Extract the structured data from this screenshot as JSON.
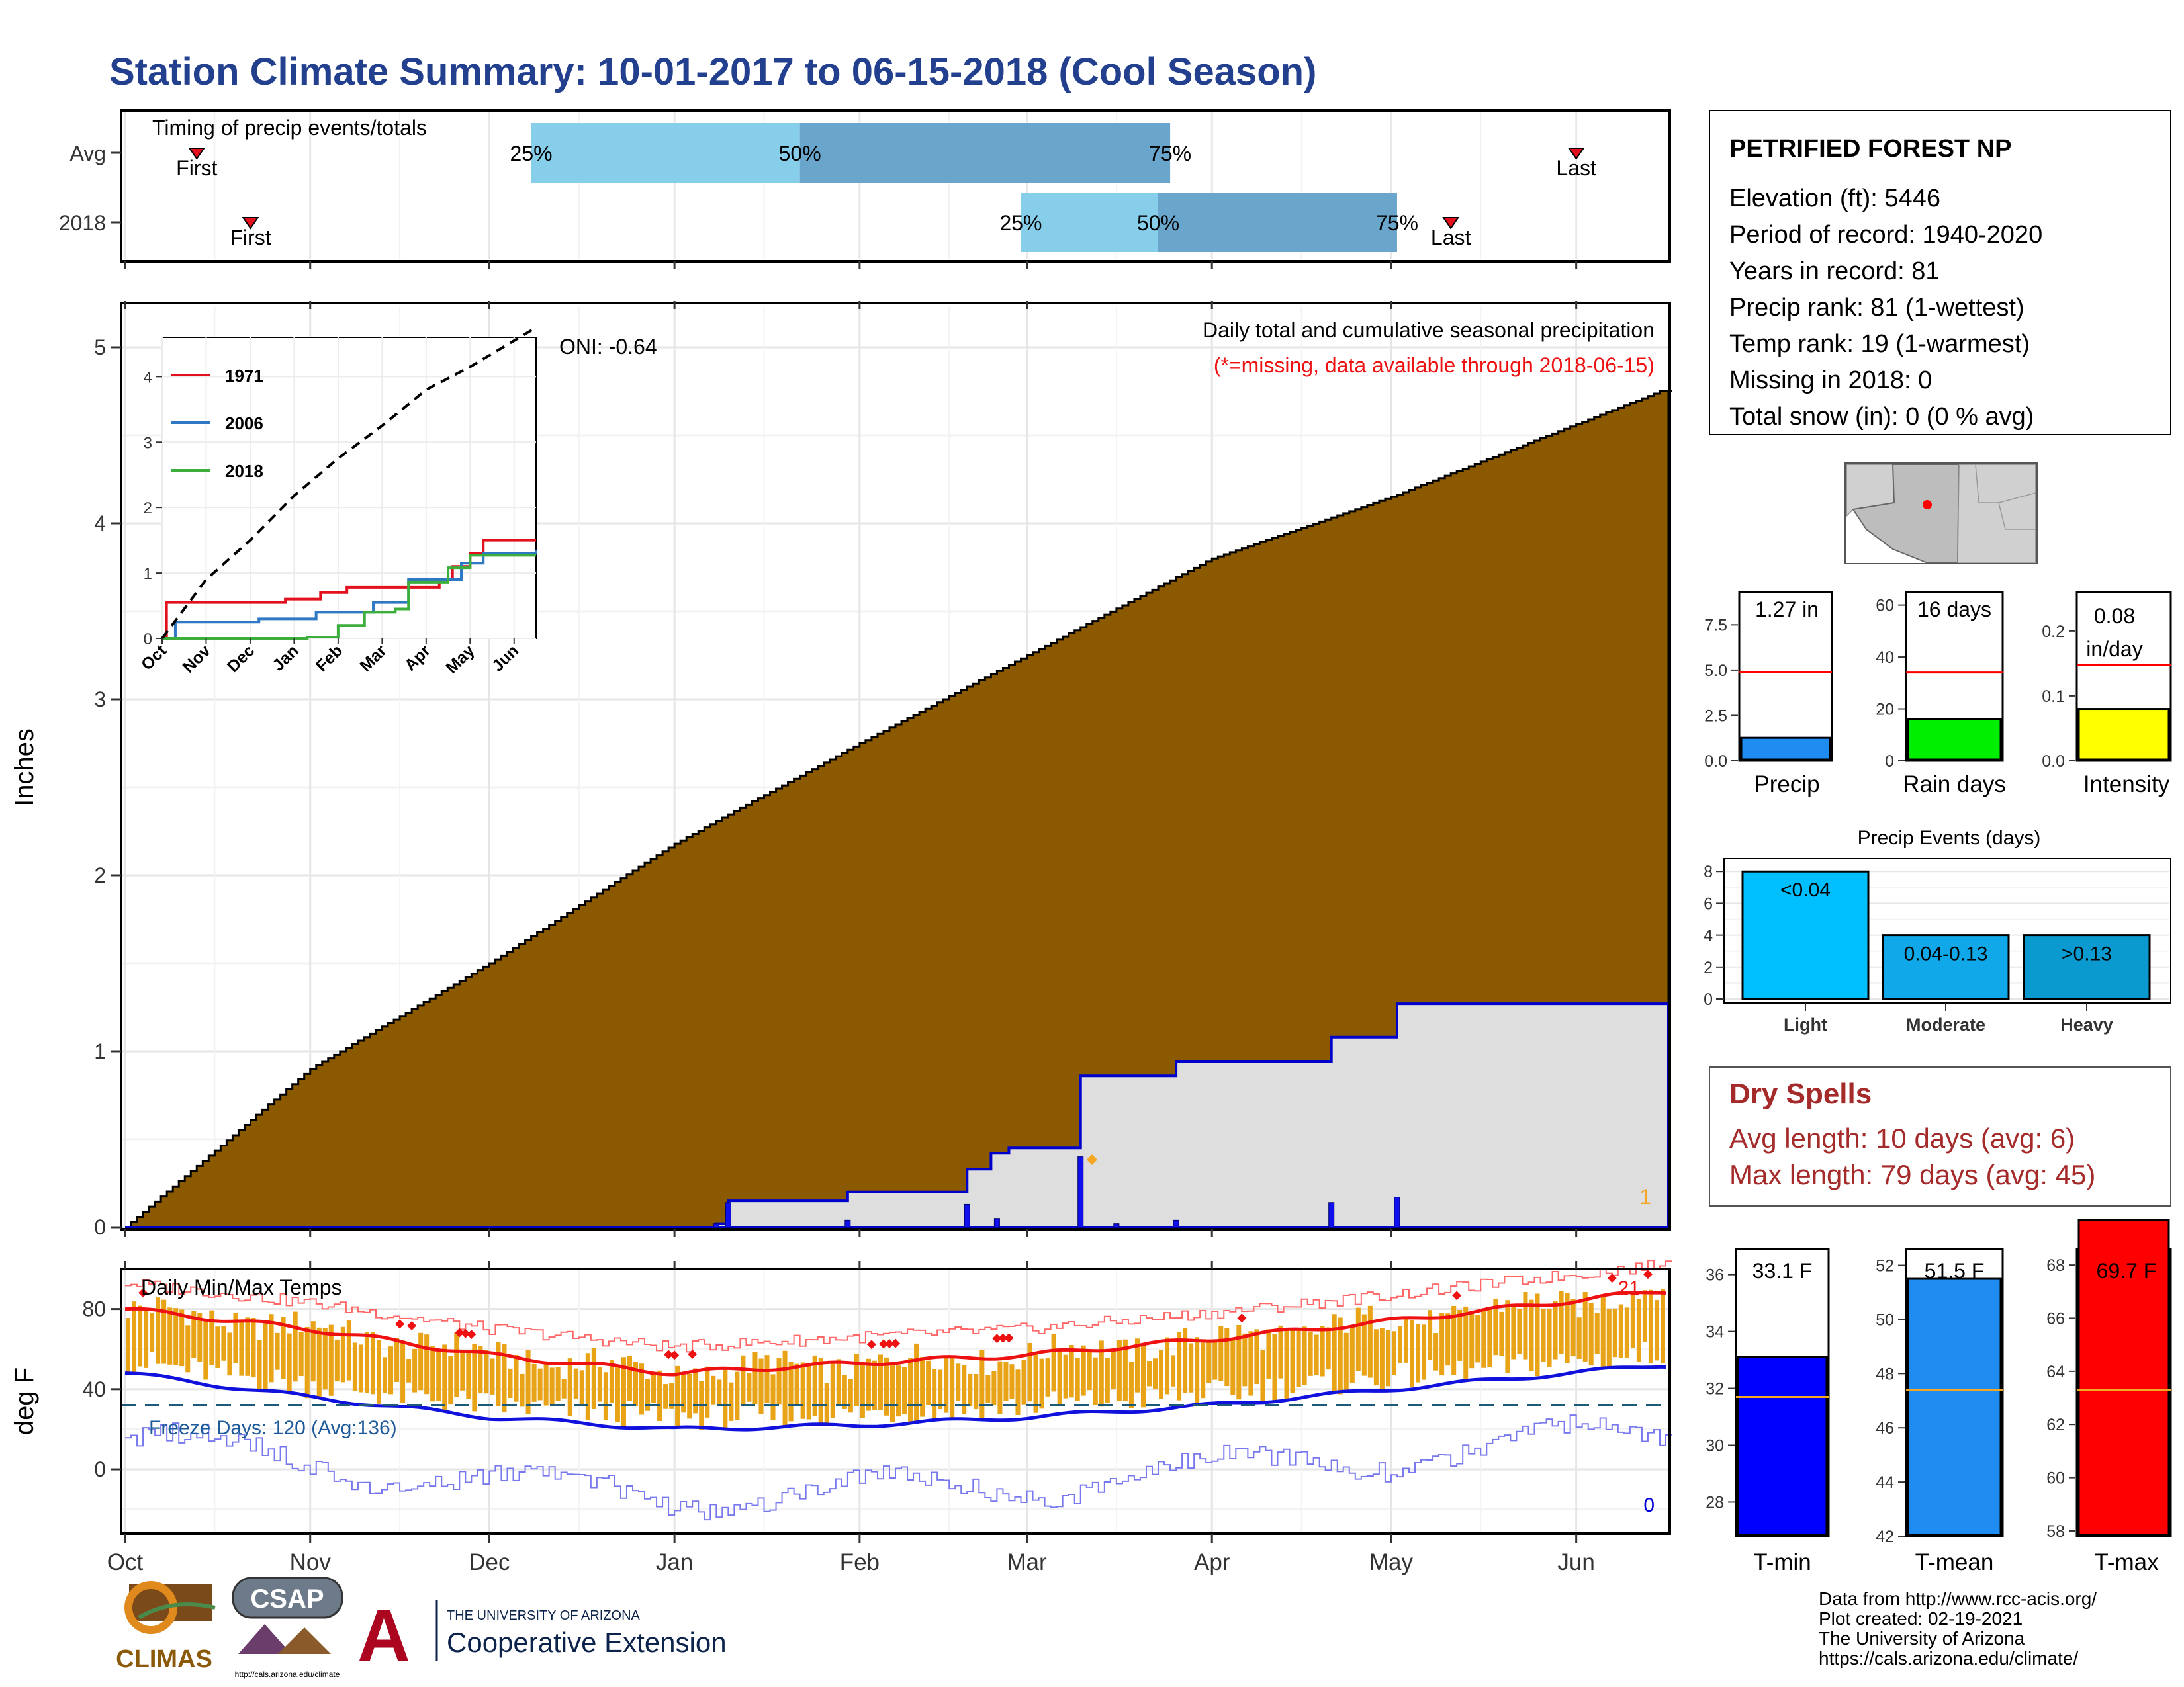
{
  "title": "Station Climate Summary: 10-01-2017 to 06-15-2018 (Cool Season)",
  "timing": {
    "heading": "Timing of precip events/totals",
    "rows": [
      {
        "label": "Avg",
        "first_label": "First",
        "last_label": "Last",
        "p25": "25%",
        "p50": "50%",
        "p75": "75%",
        "first_day": 12,
        "q25_day": 68,
        "q50_day": 113,
        "q75_day": 175,
        "last_day": 243
      },
      {
        "label": "2018",
        "first_label": "First",
        "last_label": "Last",
        "p25": "25%",
        "p50": "50%",
        "p75": "75%",
        "first_day": 21,
        "q25_day": 150,
        "q50_day": 173,
        "q75_day": 213,
        "last_day": 222
      }
    ],
    "colors": {
      "early": "#87ceeb",
      "late": "#6aa5cc",
      "marker": "#e3101d"
    }
  },
  "station": {
    "name": "PETRIFIED FOREST NP",
    "lines": [
      "Elevation (ft): 5446",
      "Period of record: 1940-2020",
      "Years in record: 81",
      "Precip rank: 81 (1-wettest)",
      "Temp rank: 19 (1-warmest)",
      "Missing in 2018: 0",
      "Total snow (in): 0 (0 % avg)"
    ]
  },
  "precip_panel": {
    "heading": "Daily total and cumulative seasonal precipitation",
    "missing_note": "(*=missing, data available through 2018-06-15)",
    "oni": "ONI: -0.64",
    "ylabel": "Inches",
    "yticks": [
      "0",
      "1",
      "2",
      "3",
      "4",
      "5"
    ],
    "corner_count": "1",
    "colors": {
      "avg_fill": "#8b5a00",
      "current_fill": "#dedede",
      "current_line": "#0000cc",
      "daily": "#1010ee"
    }
  },
  "inset": {
    "yticks": [
      "0",
      "1",
      "2",
      "3",
      "4"
    ],
    "xticks": [
      "Oct",
      "Nov",
      "Dec",
      "Jan",
      "Feb",
      "Mar",
      "Apr",
      "May",
      "Jun"
    ],
    "legend": [
      {
        "name": "1971",
        "color": "#e3101d"
      },
      {
        "name": "2006",
        "color": "#2f78c4"
      },
      {
        "name": "2018",
        "color": "#3cae3c"
      }
    ]
  },
  "temp_panel": {
    "heading": "Daily Min/Max Temps",
    "ylabel": "deg F",
    "yticks": [
      "0",
      "40",
      "80"
    ],
    "freeze_label": "Freeze Days: 120 (Avg:136)",
    "hot_count": "21",
    "cold_count": "0",
    "freeze_line_f": 32,
    "colors": {
      "range": "#e8a317",
      "max_avg": "#ee1111",
      "min_avg": "#1111dd",
      "record": "#ff5555",
      "freeze": "#1d5a7a"
    }
  },
  "month_ticks": [
    "Oct",
    "Nov",
    "Dec",
    "Jan",
    "Feb",
    "Mar",
    "Apr",
    "May",
    "Jun"
  ],
  "precip_bars": [
    {
      "label": "Precip",
      "value_label": "1.27 in",
      "ticks": [
        "0.0",
        "2.5",
        "5.0",
        "7.5"
      ],
      "color": "#1e8cf0"
    },
    {
      "label": "Rain days",
      "value_label": "16 days",
      "ticks": [
        "0",
        "20",
        "40",
        "60"
      ],
      "color": "#00ee00"
    },
    {
      "label": "Intensity",
      "value_label_1": "0.08",
      "value_label_2": "in/day",
      "ticks": [
        "0.0",
        "0.1",
        "0.2"
      ],
      "color": "#ffff00"
    }
  ],
  "events": {
    "title": "Precip Events (days)",
    "yticks": [
      "0",
      "2",
      "4",
      "6",
      "8"
    ],
    "bars": [
      {
        "label": "Light",
        "range": "<0.04",
        "color": "#00bfff"
      },
      {
        "label": "Moderate",
        "range": "0.04-0.13",
        "color": "#10a8e8"
      },
      {
        "label": "Heavy",
        "range": ">0.13",
        "color": "#0a9ad0"
      }
    ]
  },
  "dry_spells": {
    "title": "Dry Spells",
    "avg": "Avg length: 10 days (avg: 6)",
    "max": "Max length: 79 days (avg: 45)",
    "color": "#a52a2a"
  },
  "temp_bars": [
    {
      "label": "T-min",
      "value_label": "33.1 F",
      "ticks": [
        "28",
        "30",
        "32",
        "34",
        "36"
      ],
      "color": "#0000ff"
    },
    {
      "label": "T-mean",
      "value_label": "51.5 F",
      "ticks": [
        "42",
        "44",
        "46",
        "48",
        "50",
        "52"
      ],
      "color": "#1e8cf0"
    },
    {
      "label": "T-max",
      "value_label": "69.7 F",
      "ticks": [
        "58",
        "60",
        "62",
        "64",
        "66",
        "68"
      ],
      "color": "#ff0000"
    }
  ],
  "logos": {
    "climas": "CLIMAS",
    "csap": "CSAP",
    "csap_url": "http://cals.arizona.edu/climate",
    "ua_small": "THE UNIVERSITY OF ARIZONA",
    "ua_big": "Cooperative Extension"
  },
  "credits": [
    "Data from http://www.rcc-acis.org/",
    "Plot created: 02-19-2021",
    "The University of Arizona",
    "https://cals.arizona.edu/climate/"
  ],
  "chart_data": [
    {
      "type": "area",
      "title": "Daily total and cumulative seasonal precipitation",
      "ylabel": "Inches",
      "ylim": [
        0,
        5.25
      ],
      "x_unit": "date",
      "series": [
        {
          "name": "",
          "x": [
            "2017-10-01",
            "2017-11-01",
            "2017-12-01",
            "2018-01-01",
            "2018-02-01",
            "2018-03-01",
            "2018-04-01",
            "2018-05-01",
            "2018-06-15"
          ],
          "values": [
            0.0,
            0.9,
            1.5,
            2.18,
            2.75,
            3.25,
            3.8,
            4.15,
            4.75
          ]
        },
        {
          "name": "",
          "steps": [
            [
              "2017-10-01",
              0.0
            ],
            [
              "2018-01-08",
              0.02
            ],
            [
              "2018-01-10",
              0.15
            ],
            [
              "2018-01-30",
              0.2
            ],
            [
              "2018-02-19",
              0.33
            ],
            [
              "2018-02-23",
              0.42
            ],
            [
              "2018-02-26",
              0.45
            ],
            [
              "2018-03-10",
              0.86
            ],
            [
              "2018-03-26",
              0.94
            ],
            [
              "2018-04-21",
              1.08
            ],
            [
              "2018-05-02",
              1.27
            ],
            [
              "2018-06-15",
              1.27
            ]
          ]
        },
        {
          "name": "",
          "bars": [
            [
              "2018-01-08",
              0.02
            ],
            [
              "2018-01-10",
              0.14
            ],
            [
              "2018-01-30",
              0.04
            ],
            [
              "2018-02-19",
              0.13
            ],
            [
              "2018-02-24",
              0.05
            ],
            [
              "2018-03-10",
              0.4
            ],
            [
              "2018-03-16",
              0.02
            ],
            [
              "2018-03-26",
              0.04
            ],
            [
              "2018-04-21",
              0.14
            ],
            [
              "2018-05-02",
              0.17
            ]
          ]
        }
      ]
    },
    {
      "type": "line",
      "title": "",
      "ylim": [
        0,
        4.6
      ],
      "xticks": [
        "Oct",
        "Nov",
        "Dec",
        "Jan",
        "Feb",
        "Mar",
        "Apr",
        "May",
        "Jun"
      ],
      "series": [
        {
          "name": "1971",
          "steps": [
            [
              0,
              0.0
            ],
            [
              0.1,
              0.55
            ],
            [
              2.8,
              0.6
            ],
            [
              3.6,
              0.7
            ],
            [
              4.2,
              0.78
            ],
            [
              6.3,
              0.9
            ],
            [
              6.6,
              1.1
            ],
            [
              7.0,
              1.3
            ],
            [
              7.3,
              1.5
            ],
            [
              8.5,
              1.5
            ]
          ]
        },
        {
          "name": "2006",
          "steps": [
            [
              0,
              0.0
            ],
            [
              0.3,
              0.25
            ],
            [
              2.2,
              0.3
            ],
            [
              3.5,
              0.4
            ],
            [
              4.8,
              0.55
            ],
            [
              5.6,
              0.9
            ],
            [
              6.8,
              1.15
            ],
            [
              7.3,
              1.3
            ],
            [
              8.5,
              1.35
            ]
          ]
        },
        {
          "name": "2018",
          "steps": [
            [
              0,
              0.0
            ],
            [
              3.3,
              0.02
            ],
            [
              4.0,
              0.2
            ],
            [
              4.6,
              0.4
            ],
            [
              5.3,
              0.45
            ],
            [
              5.6,
              0.86
            ],
            [
              6.5,
              1.08
            ],
            [
              7.0,
              1.27
            ],
            [
              8.5,
              1.27
            ]
          ]
        },
        {
          "name": "",
          "points": [
            [
              0,
              0.0
            ],
            [
              1,
              0.9
            ],
            [
              2,
              1.5
            ],
            [
              3,
              2.18
            ],
            [
              4,
              2.75
            ],
            [
              5,
              3.25
            ],
            [
              6,
              3.8
            ],
            [
              7,
              4.15
            ],
            [
              8.5,
              4.75
            ]
          ]
        }
      ]
    },
    {
      "type": "line",
      "title": "Daily Min/Max Temps",
      "ylabel": "deg F",
      "ylim": [
        -32,
        100
      ],
      "series": [
        {
          "name": "",
          "points": [
            [
              "2017-10-01",
              80
            ],
            [
              "2017-11-01",
              70
            ],
            [
              "2017-12-01",
              57
            ],
            [
              "2018-01-01",
              48
            ],
            [
              "2018-02-01",
              53
            ],
            [
              "2018-03-01",
              57
            ],
            [
              "2018-04-01",
              65
            ],
            [
              "2018-05-01",
              74
            ],
            [
              "2018-06-15",
              89
            ]
          ]
        },
        {
          "name": "",
          "points": [
            [
              "2017-10-01",
              48
            ],
            [
              "2017-11-01",
              36
            ],
            [
              "2017-12-01",
              26
            ],
            [
              "2018-01-01",
              20
            ],
            [
              "2018-02-01",
              22
            ],
            [
              "2018-03-01",
              26
            ],
            [
              "2018-04-01",
              32
            ],
            [
              "2018-05-01",
              40
            ],
            [
              "2018-06-15",
              52
            ]
          ]
        }
      ]
    },
    {
      "type": "bar",
      "title": "",
      "categories": [
        "Precip",
        "Rain days",
        "Intensity"
      ],
      "series": [
        {
          "name": "",
          "values": [
            1.27,
            16,
            0.08
          ]
        },
        {
          "name": "",
          "values": [
            4.9,
            34,
            0.148
          ]
        }
      ]
    },
    {
      "type": "bar",
      "title": "Precip Events (days)",
      "categories": [
        "Light",
        "Moderate",
        "Heavy"
      ],
      "values": [
        8,
        4,
        4
      ],
      "ylim": [
        0,
        8.5
      ]
    },
    {
      "type": "bar",
      "title": "",
      "categories": [
        "T-min",
        "T-mean",
        "T-max"
      ],
      "series": [
        {
          "name": "",
          "values": [
            33.1,
            51.5,
            69.7
          ]
        },
        {
          "name": "",
          "values": [
            31.7,
            47.4,
            63.3
          ]
        }
      ]
    }
  ]
}
